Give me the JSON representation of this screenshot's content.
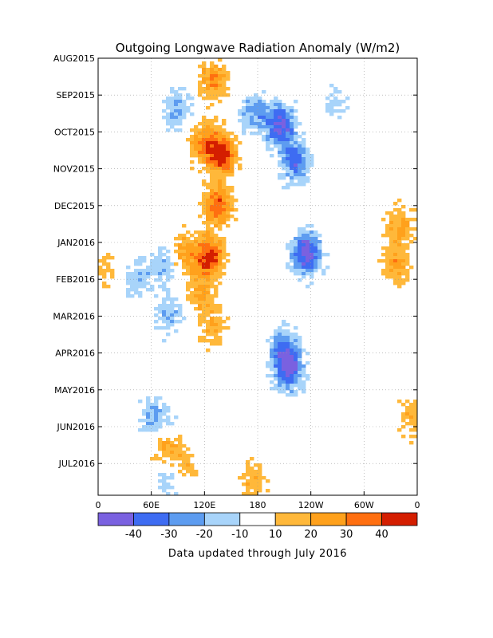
{
  "chart_data": {
    "type": "heatmap",
    "title": "Outgoing Longwave Radiation Anomaly (W/m2)",
    "units": "W/m2",
    "y_ticks": [
      "AUG2015",
      "SEP2015",
      "OCT2015",
      "NOV2015",
      "DEC2015",
      "JAN2016",
      "FEB2016",
      "MAR2016",
      "APR2016",
      "MAY2016",
      "JUN2016",
      "JUL2016"
    ],
    "x_ticks": [
      "0",
      "60E",
      "120E",
      "180",
      "120W",
      "60W",
      "0"
    ],
    "x_range_deg": [
      0,
      360
    ],
    "colorbar": {
      "bins": [
        {
          "range": "< -40",
          "color": "#7a61e0"
        },
        {
          "range": "-40 to -30",
          "color": "#3e6cf2"
        },
        {
          "range": "-30 to -20",
          "color": "#5d9cf0"
        },
        {
          "range": "-20 to -10",
          "color": "#a8d4fa"
        },
        {
          "range": "-10 to 10",
          "color": "#ffffff"
        },
        {
          "range": "10 to 20",
          "color": "#ffb83a"
        },
        {
          "range": "20 to 30",
          "color": "#ffa11c"
        },
        {
          "range": "30 to 40",
          "color": "#ff6f10"
        },
        {
          "range": "> 40",
          "color": "#d41e00"
        }
      ],
      "labels": [
        "-40",
        "-30",
        "-20",
        "-10",
        "10",
        "20",
        "30",
        "40"
      ]
    },
    "grid": true,
    "footer": "Data updated through July 2016",
    "anomaly_features": [
      {
        "lon": 235,
        "month": 5.3,
        "value": -50
      },
      {
        "lon": 222,
        "month": 2.8,
        "value": -35
      },
      {
        "lon": 205,
        "month": 1.8,
        "value": -45
      },
      {
        "lon": 215,
        "month": 8.5,
        "value": -40
      },
      {
        "lon": 210,
        "month": 7.9,
        "value": -32
      },
      {
        "lon": 140,
        "month": 2.6,
        "value": 45
      },
      {
        "lon": 120,
        "month": 2.3,
        "value": 30
      },
      {
        "lon": 130,
        "month": 0.6,
        "value": 28
      },
      {
        "lon": 135,
        "month": 4.0,
        "value": 38
      },
      {
        "lon": 125,
        "month": 5.4,
        "value": 45
      },
      {
        "lon": 95,
        "month": 5.3,
        "value": 25
      },
      {
        "lon": 115,
        "month": 6.4,
        "value": 20
      },
      {
        "lon": 130,
        "month": 7.3,
        "value": 18
      },
      {
        "lon": 75,
        "month": 10.5,
        "value": 35
      },
      {
        "lon": 95,
        "month": 11.0,
        "value": 20
      },
      {
        "lon": 175,
        "month": 11.5,
        "value": 18
      },
      {
        "lon": 340,
        "month": 4.5,
        "value": 22
      },
      {
        "lon": 335,
        "month": 5.6,
        "value": 24
      },
      {
        "lon": 355,
        "month": 9.8,
        "value": 18
      },
      {
        "lon": 5,
        "month": 5.6,
        "value": 15
      },
      {
        "lon": 75,
        "month": 5.6,
        "value": -22
      },
      {
        "lon": 45,
        "month": 6.0,
        "value": -18
      },
      {
        "lon": 80,
        "month": 7.0,
        "value": -20
      },
      {
        "lon": 90,
        "month": 1.4,
        "value": -22
      },
      {
        "lon": 175,
        "month": 1.5,
        "value": -24
      },
      {
        "lon": 75,
        "month": 10.2,
        "value": -22
      },
      {
        "lon": 60,
        "month": 9.7,
        "value": -18
      },
      {
        "lon": 80,
        "month": 11.3,
        "value": -20
      },
      {
        "lon": 270,
        "month": 1.2,
        "value": -12
      }
    ]
  }
}
